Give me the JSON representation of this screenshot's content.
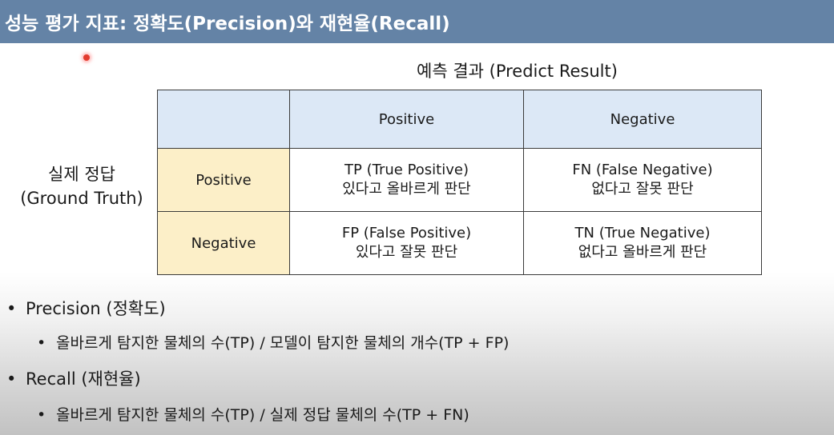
{
  "header": {
    "title": "성능 평가 지표: 정확도(Precision)와 재현율(Recall)"
  },
  "matrix": {
    "top_caption": "예측 결과 (Predict Result)",
    "left_caption_line1": "실제 정답",
    "left_caption_line2": "(Ground Truth)",
    "columns": [
      "Positive",
      "Negative"
    ],
    "rows": [
      {
        "label": "Positive",
        "cells": [
          {
            "line1": "TP (True Positive)",
            "line2": "있다고 올바르게 판단"
          },
          {
            "line1": "FN (False Negative)",
            "line2": "없다고 잘못 판단"
          }
        ]
      },
      {
        "label": "Negative",
        "cells": [
          {
            "line1": "FP (False Positive)",
            "line2": "있다고 잘못 판단"
          },
          {
            "line1": "TN (True Negative)",
            "line2": "없다고 올바르게 판단"
          }
        ]
      }
    ],
    "colors": {
      "header_fill": "#dce8f6",
      "row_header_fill": "#fcefc8",
      "border": "#3b3b3b"
    }
  },
  "bullets": [
    {
      "label": "Precision (정확도)",
      "sub": "올바르게 탐지한 물체의 수(TP) / 모델이 탐지한 물체의 개수(TP + FP)"
    },
    {
      "label": "Recall (재현율)",
      "sub": "올바르게 탐지한 물체의 수(TP) / 실제 정답 물체의 수(TP + FN)"
    }
  ],
  "bullet_glyph": "•",
  "colors": {
    "title_bar": "#6483a6",
    "title_text": "#ffffff",
    "pointer": "#e23b2e"
  }
}
